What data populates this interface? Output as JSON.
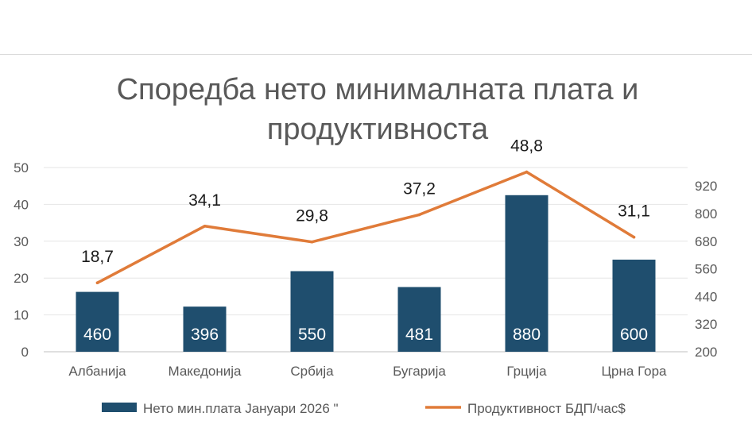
{
  "chart_data": {
    "type": "bar",
    "title": "Споредба нето минималната плата  и\nпродуктивноста",
    "categories": [
      "Албанија",
      "Македонија",
      "Србија",
      "Бугарија",
      "Грција",
      "Црна Гора"
    ],
    "series": [
      {
        "name": "Нето мин.плата  Јануари 2026  \"",
        "chart_type": "bar",
        "axis": "right",
        "values": [
          460,
          396,
          550,
          481,
          880,
          600
        ],
        "labels": [
          "460",
          "396",
          "550",
          "481",
          "880",
          "600"
        ],
        "color": "#1f4e6e"
      },
      {
        "name": "Продуктивност БДП/час$",
        "chart_type": "line",
        "axis": "left",
        "values": [
          18.7,
          34.1,
          29.8,
          37.2,
          48.8,
          31.1
        ],
        "labels": [
          "18,7",
          "34,1",
          "29,8",
          "37,2",
          "48,8",
          "31,1"
        ],
        "color": "#e07b39"
      }
    ],
    "y_left": {
      "ylim": [
        0,
        50
      ],
      "ticks": [
        "0",
        "10",
        "20",
        "30",
        "40",
        "50"
      ]
    },
    "y_right": {
      "ylim": [
        200,
        1000
      ],
      "ticks": [
        "200",
        "320",
        "440",
        "560",
        "680",
        "800",
        "920"
      ]
    },
    "grid": true,
    "legend": "bottom"
  }
}
